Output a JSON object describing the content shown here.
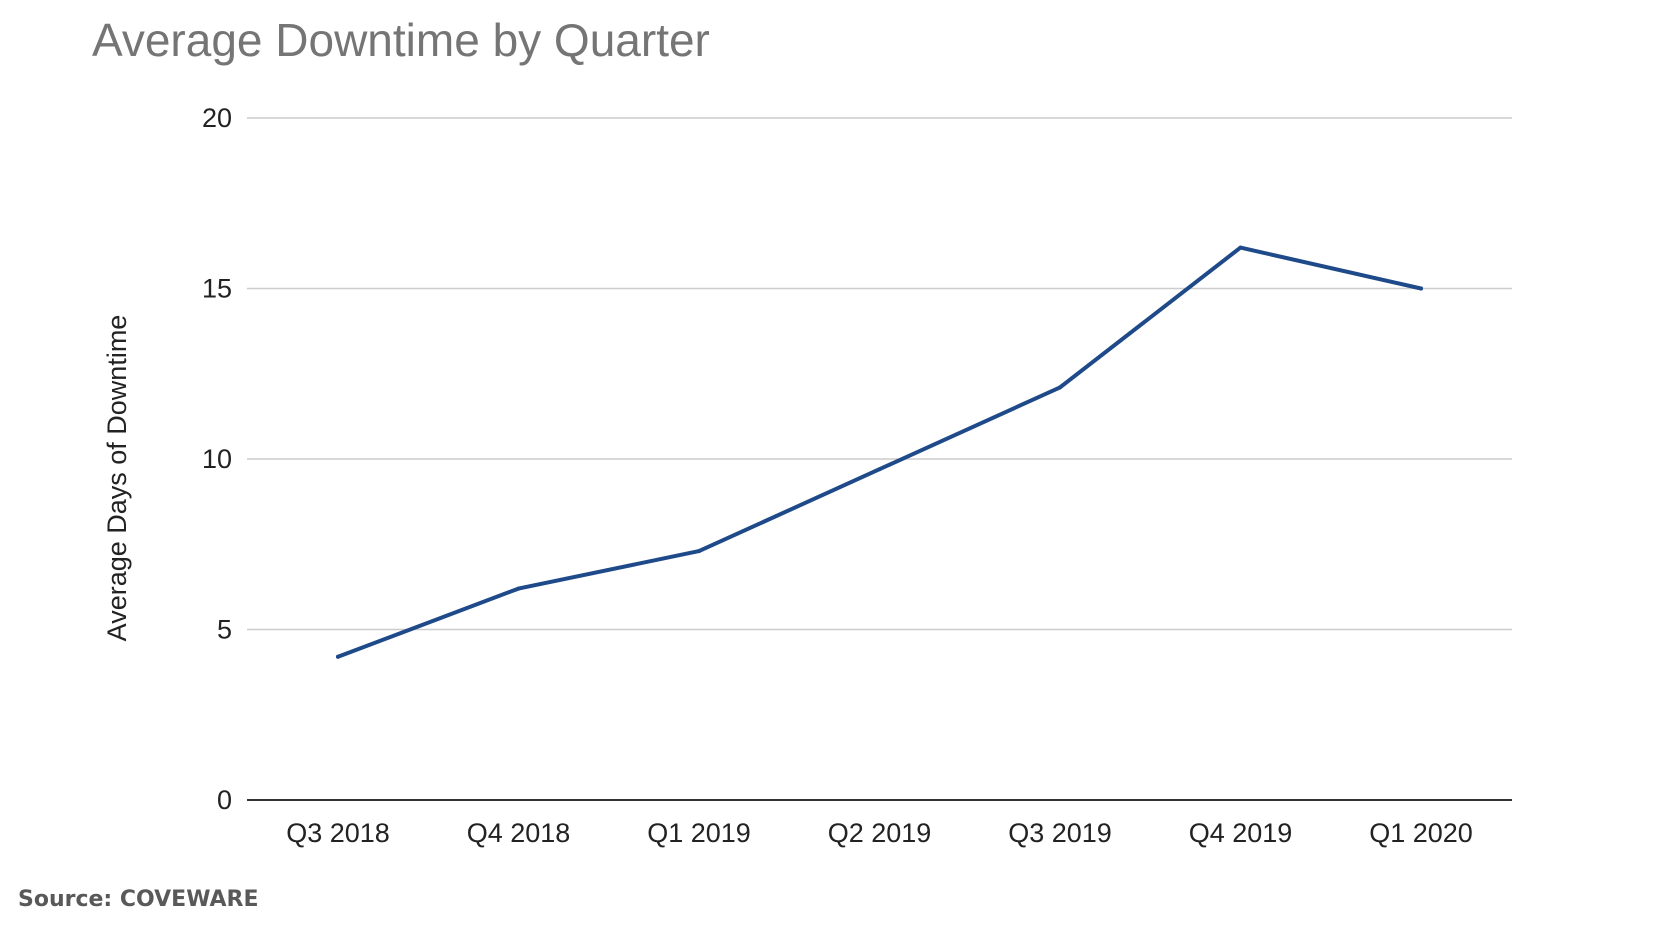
{
  "chart_data": {
    "type": "line",
    "title": "Average Downtime by Quarter",
    "xlabel": "",
    "ylabel": "Average Days of Downtime",
    "categories": [
      "Q3 2018",
      "Q4 2018",
      "Q1 2019",
      "Q2 2019",
      "Q3 2019",
      "Q4 2019",
      "Q1 2020"
    ],
    "series": [
      {
        "values": [
          4.2,
          6.2,
          7.3,
          9.7,
          12.1,
          16.2,
          15.0
        ],
        "color": "#1f4a8a"
      }
    ],
    "ylim": [
      0,
      20
    ],
    "yticks": [
      "0",
      "5",
      "10",
      "15",
      "20"
    ],
    "grid": true,
    "legend": "none"
  },
  "footer": {
    "source": "Source: COVEWARE"
  }
}
